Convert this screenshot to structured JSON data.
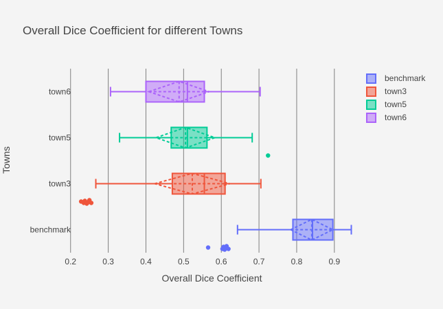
{
  "chart_data": {
    "type": "box",
    "orientation": "horizontal",
    "title": "Overall Dice Coefficient for different Towns",
    "xlabel": "Overall Dice Coefficient",
    "ylabel": "Towns",
    "xlim": [
      0.195,
      0.955
    ],
    "xticks": [
      "0.2",
      "0.3",
      "0.4",
      "0.5",
      "0.6",
      "0.7",
      "0.8",
      "0.9"
    ],
    "categories": [
      "benchmark",
      "town3",
      "town5",
      "town6"
    ],
    "grid": "vertical",
    "legend_position": "top-right",
    "series": [
      {
        "name": "benchmark",
        "color": "#636efa",
        "min": 0.643,
        "q1": 0.79,
        "median": 0.842,
        "q3": 0.896,
        "max": 0.945,
        "mean": 0.84,
        "sd": 0.056,
        "outliers": [
          0.565,
          0.603,
          0.606,
          0.609,
          0.611,
          0.614,
          0.619
        ]
      },
      {
        "name": "town3",
        "color": "#ef553b",
        "min": 0.267,
        "q1": 0.47,
        "median": 0.555,
        "q3": 0.61,
        "max": 0.705,
        "mean": 0.523,
        "sd": 0.1,
        "outliers": [
          0.228,
          0.235,
          0.238,
          0.243,
          0.247,
          0.25,
          0.255
        ]
      },
      {
        "name": "town5",
        "color": "#00cc96",
        "min": 0.33,
        "q1": 0.467,
        "median": 0.51,
        "q3": 0.562,
        "max": 0.682,
        "mean": 0.505,
        "sd": 0.078,
        "outliers": [
          0.724
        ]
      },
      {
        "name": "town6",
        "color": "#ab63fa",
        "min": 0.306,
        "q1": 0.4,
        "median": 0.51,
        "q3": 0.555,
        "max": 0.703,
        "mean": 0.488,
        "sd": 0.08,
        "outliers": []
      }
    ]
  }
}
